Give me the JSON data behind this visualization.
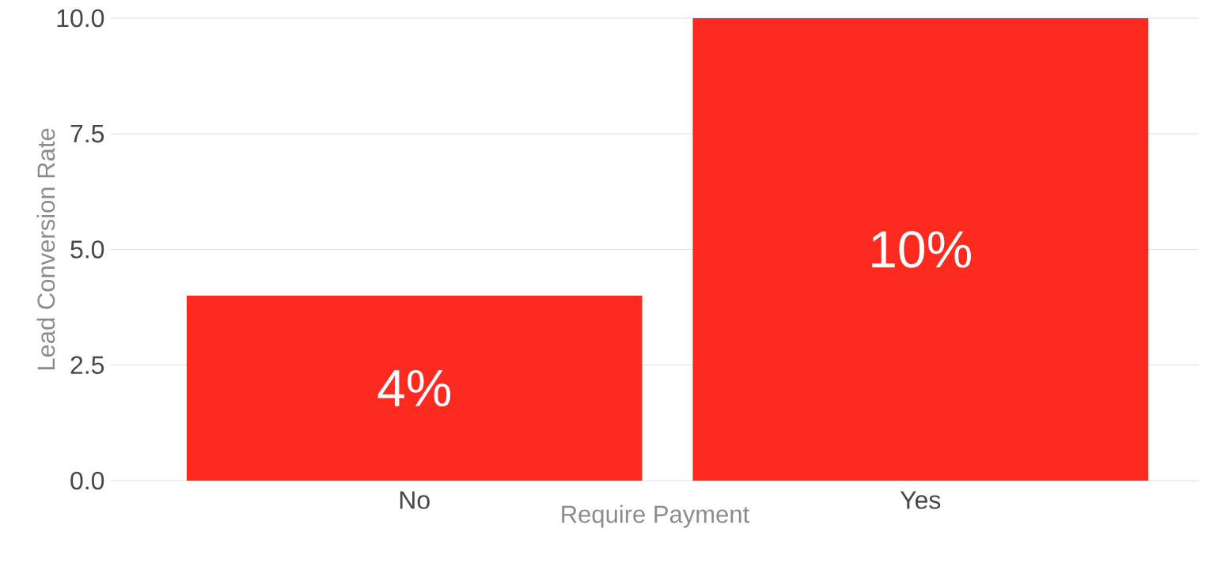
{
  "chart_data": {
    "type": "bar",
    "categories": [
      "No",
      "Yes"
    ],
    "values": [
      4,
      10
    ],
    "color": "#fc2a1f",
    "value_labels": [
      "4%",
      "10%"
    ],
    "xlabel": "Require Payment",
    "ylabel": "Lead Conversion Rate",
    "ylim": [
      0,
      10
    ],
    "yticks": [
      {
        "value": 0,
        "label": "0.0"
      },
      {
        "value": 2.5,
        "label": "2.5"
      },
      {
        "value": 5,
        "label": "5.0"
      },
      {
        "value": 7.5,
        "label": "7.5"
      },
      {
        "value": 10,
        "label": "10.0"
      }
    ],
    "grid": "y"
  }
}
